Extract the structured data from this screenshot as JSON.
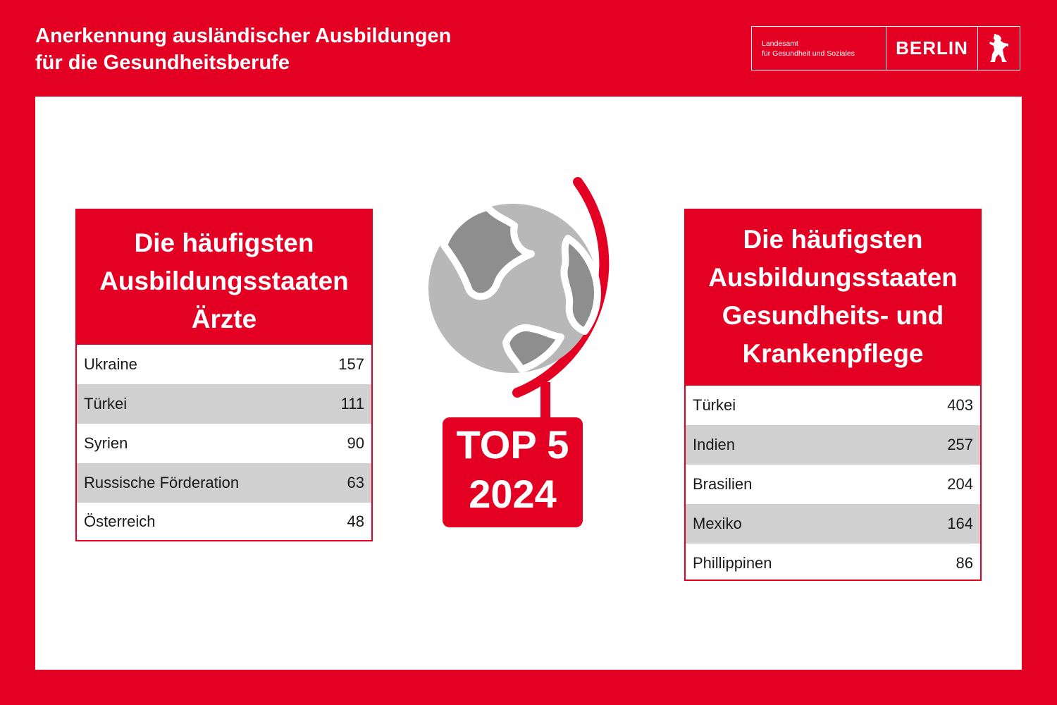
{
  "header": {
    "title_line1": "Anerkennung ausländischer Ausbildungen",
    "title_line2": "für die Gesundheitsberufe"
  },
  "logo": {
    "agency_line1": "Landesamt",
    "agency_line2": "für Gesundheit und Soziales",
    "city": "BERLIN",
    "emblem_icon": "bear-icon"
  },
  "left_table": {
    "heading_line1": "Die häufigsten",
    "heading_line2": "Ausbildungsstaaten",
    "heading_line3": "Ärzte",
    "rows": [
      {
        "country": "Ukraine",
        "count": "157"
      },
      {
        "country": "Türkei",
        "count": "111"
      },
      {
        "country": "Syrien",
        "count": "90"
      },
      {
        "country": "Russische Förderation",
        "count": "63"
      },
      {
        "country": "Österreich",
        "count": "48"
      }
    ]
  },
  "right_table": {
    "heading_line1": "Die häufigsten",
    "heading_line2": "Ausbildungsstaaten",
    "heading_line3": "Gesundheits- und",
    "heading_line4": "Krankenpflege",
    "rows": [
      {
        "country": "Türkei",
        "count": "403"
      },
      {
        "country": "Indien",
        "count": "257"
      },
      {
        "country": "Brasilien",
        "count": "204"
      },
      {
        "country": "Mexiko",
        "count": "164"
      },
      {
        "country": "Phillippinen",
        "count": "86"
      }
    ]
  },
  "center": {
    "icon": "globe-icon",
    "badge_line1": "TOP 5",
    "badge_line2": "2024"
  },
  "colors": {
    "brand_red": "#e30022",
    "row_shade": "#d0d0d0",
    "globe_light": "#b8b8b8",
    "globe_dark": "#8e8e8e"
  }
}
